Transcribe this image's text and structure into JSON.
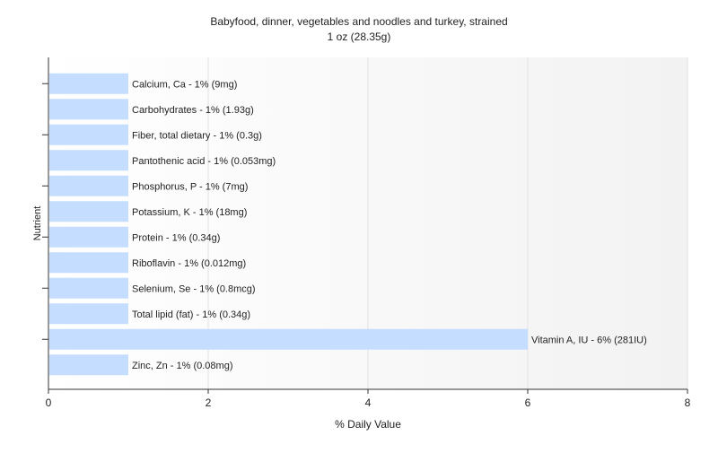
{
  "chart_data": {
    "type": "bar",
    "orientation": "horizontal",
    "title": "Babyfood, dinner, vegetables and noodles and turkey, strained",
    "subtitle": "1 oz (28.35g)",
    "xlabel": "% Daily Value",
    "ylabel": "Nutrient",
    "xlim": [
      0,
      8
    ],
    "x_ticks": [
      "0",
      "2",
      "4",
      "6",
      "8"
    ],
    "grid": true,
    "bar_color": "#c5deff",
    "categories": [
      "Calcium, Ca",
      "Carbohydrates",
      "Fiber, total dietary",
      "Pantothenic acid",
      "Phosphorus, P",
      "Potassium, K",
      "Protein",
      "Riboflavin",
      "Selenium, Se",
      "Total lipid (fat)",
      "Vitamin A, IU",
      "Zinc, Zn"
    ],
    "values": [
      1,
      1,
      1,
      1,
      1,
      1,
      1,
      1,
      1,
      1,
      6,
      1
    ],
    "labels": [
      "Calcium, Ca - 1% (9mg)",
      "Carbohydrates - 1% (1.93g)",
      "Fiber, total dietary - 1% (0.3g)",
      "Pantothenic acid - 1% (0.053mg)",
      "Phosphorus, P - 1% (7mg)",
      "Potassium, K - 1% (18mg)",
      "Protein - 1% (0.34g)",
      "Riboflavin - 1% (0.012mg)",
      "Selenium, Se - 1% (0.8mcg)",
      "Total lipid (fat) - 1% (0.34g)",
      "Vitamin A, IU - 6% (281IU)",
      "Zinc, Zn - 1% (0.08mg)"
    ]
  }
}
